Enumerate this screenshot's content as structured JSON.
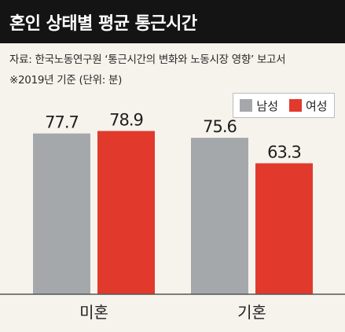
{
  "header": {
    "title": "혼인 상태별 평균 통근시간",
    "source": "자료: 한국노동연구원 ‘통근시간의 변화와 노동시장 영향’ 보고서",
    "note": "※2019년 기준  (단위: 분)"
  },
  "chart_data": {
    "type": "bar",
    "title": "혼인 상태별 평균 통근시간",
    "categories": [
      "미혼",
      "기혼"
    ],
    "series": [
      {
        "name": "남성",
        "values": [
          77.7,
          75.6
        ],
        "color": "#a5a8ab"
      },
      {
        "name": "여성",
        "values": [
          78.9,
          63.3
        ],
        "color": "#e13a2c"
      }
    ],
    "ylim": [
      0,
      100
    ],
    "grid": false,
    "legend": "top-right",
    "unit": "분"
  }
}
